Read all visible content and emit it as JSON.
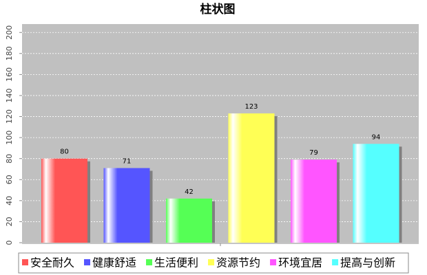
{
  "chart_data": {
    "type": "bar",
    "title": "柱状图",
    "categories": [
      null
    ],
    "series": [
      {
        "name": "安全耐久",
        "color": "#ff5555",
        "values": [
          80
        ]
      },
      {
        "name": "健康舒适",
        "color": "#5555ff",
        "values": [
          71
        ]
      },
      {
        "name": "生活便利",
        "color": "#55ff55",
        "values": [
          42
        ]
      },
      {
        "name": "资源节约",
        "color": "#ffff55",
        "values": [
          123
        ]
      },
      {
        "name": "环境宜居",
        "color": "#ff55ff",
        "values": [
          79
        ]
      },
      {
        "name": "提高与创新",
        "color": "#55ffff",
        "values": [
          94
        ]
      }
    ],
    "ylim": [
      0,
      208
    ],
    "yticks": [
      0,
      20,
      40,
      60,
      80,
      100,
      120,
      140,
      160,
      180,
      200
    ],
    "grid": true
  }
}
